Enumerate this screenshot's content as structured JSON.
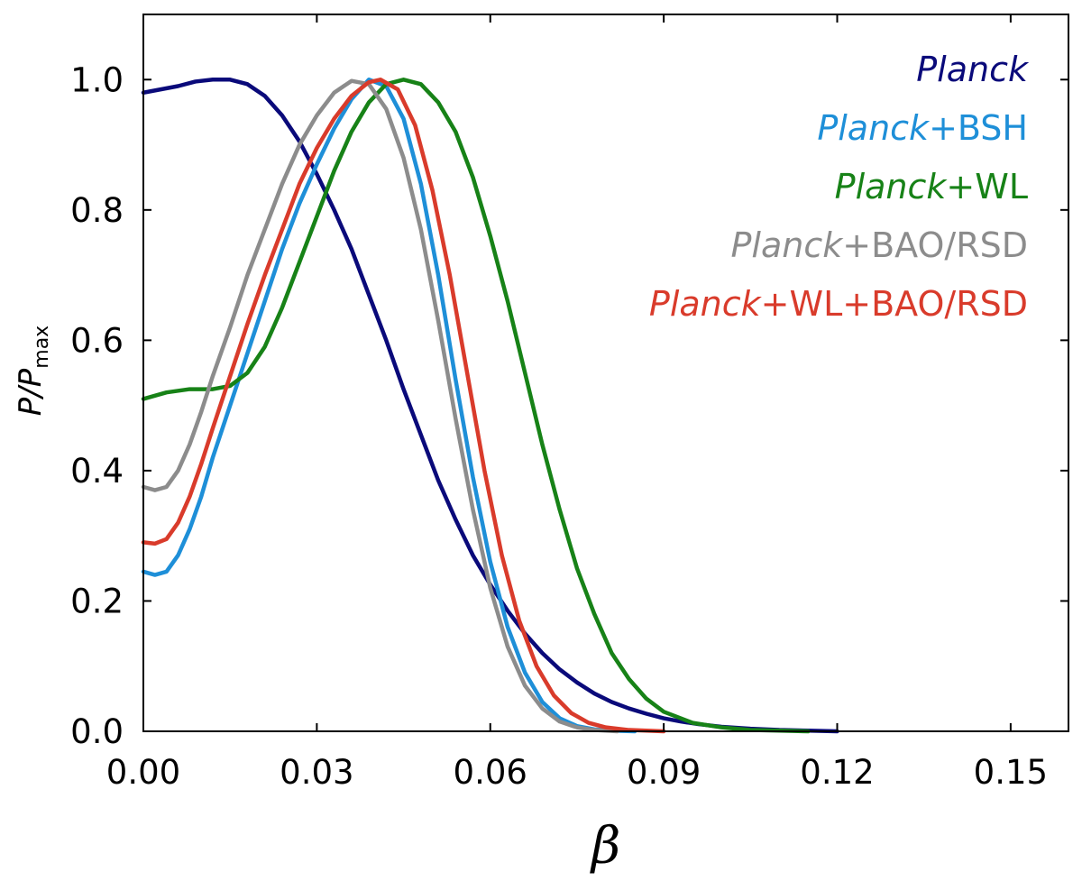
{
  "chart_data": {
    "type": "line",
    "title": "",
    "xlabel": "β",
    "ylabel": {
      "main": "P/P",
      "sub": "max"
    },
    "xlim": [
      0.0,
      0.16
    ],
    "ylim": [
      0.0,
      1.1
    ],
    "x_ticks": [
      0.0,
      0.03,
      0.06,
      0.09,
      0.12,
      0.15
    ],
    "x_tick_labels": [
      "0.00",
      "0.03",
      "0.06",
      "0.09",
      "0.12",
      "0.15"
    ],
    "y_ticks": [
      0.0,
      0.2,
      0.4,
      0.6,
      0.8,
      1.0
    ],
    "y_tick_labels": [
      "0.0",
      "0.2",
      "0.4",
      "0.6",
      "0.8",
      "1.0"
    ],
    "grid": false,
    "legend_position": "top-right",
    "series": [
      {
        "name": "Planck",
        "label_parts": [
          {
            "text": "Planck",
            "italic": true
          }
        ],
        "color": "#0a0a7a",
        "points": [
          [
            0.0,
            0.98
          ],
          [
            0.003,
            0.985
          ],
          [
            0.006,
            0.99
          ],
          [
            0.009,
            0.997
          ],
          [
            0.012,
            1.0
          ],
          [
            0.015,
            1.0
          ],
          [
            0.018,
            0.993
          ],
          [
            0.021,
            0.975
          ],
          [
            0.024,
            0.945
          ],
          [
            0.027,
            0.905
          ],
          [
            0.03,
            0.855
          ],
          [
            0.033,
            0.8
          ],
          [
            0.036,
            0.74
          ],
          [
            0.039,
            0.67
          ],
          [
            0.042,
            0.6
          ],
          [
            0.045,
            0.525
          ],
          [
            0.048,
            0.455
          ],
          [
            0.051,
            0.385
          ],
          [
            0.054,
            0.325
          ],
          [
            0.057,
            0.27
          ],
          [
            0.06,
            0.225
          ],
          [
            0.063,
            0.185
          ],
          [
            0.066,
            0.15
          ],
          [
            0.069,
            0.12
          ],
          [
            0.072,
            0.095
          ],
          [
            0.075,
            0.075
          ],
          [
            0.078,
            0.058
          ],
          [
            0.081,
            0.045
          ],
          [
            0.084,
            0.035
          ],
          [
            0.087,
            0.027
          ],
          [
            0.09,
            0.02
          ],
          [
            0.093,
            0.015
          ],
          [
            0.096,
            0.011
          ],
          [
            0.1,
            0.007
          ],
          [
            0.105,
            0.004
          ],
          [
            0.11,
            0.002
          ],
          [
            0.115,
            0.001
          ],
          [
            0.12,
            0.0
          ]
        ]
      },
      {
        "name": "Planck+BSH",
        "label_parts": [
          {
            "text": "Planck",
            "italic": true
          },
          {
            "text": "+BSH",
            "italic": false
          }
        ],
        "color": "#1e8fd8",
        "points": [
          [
            0.0,
            0.245
          ],
          [
            0.002,
            0.24
          ],
          [
            0.004,
            0.245
          ],
          [
            0.006,
            0.27
          ],
          [
            0.008,
            0.31
          ],
          [
            0.01,
            0.36
          ],
          [
            0.012,
            0.42
          ],
          [
            0.015,
            0.5
          ],
          [
            0.018,
            0.58
          ],
          [
            0.021,
            0.66
          ],
          [
            0.024,
            0.74
          ],
          [
            0.027,
            0.81
          ],
          [
            0.03,
            0.87
          ],
          [
            0.033,
            0.925
          ],
          [
            0.036,
            0.97
          ],
          [
            0.039,
            1.0
          ],
          [
            0.042,
            0.99
          ],
          [
            0.045,
            0.94
          ],
          [
            0.048,
            0.84
          ],
          [
            0.051,
            0.7
          ],
          [
            0.054,
            0.54
          ],
          [
            0.057,
            0.39
          ],
          [
            0.06,
            0.26
          ],
          [
            0.063,
            0.16
          ],
          [
            0.066,
            0.09
          ],
          [
            0.069,
            0.045
          ],
          [
            0.072,
            0.02
          ],
          [
            0.075,
            0.008
          ],
          [
            0.078,
            0.003
          ],
          [
            0.081,
            0.001
          ],
          [
            0.085,
            0.0
          ]
        ]
      },
      {
        "name": "Planck+WL",
        "label_parts": [
          {
            "text": "Planck",
            "italic": true
          },
          {
            "text": "+WL",
            "italic": false
          }
        ],
        "color": "#178217",
        "points": [
          [
            0.0,
            0.51
          ],
          [
            0.004,
            0.52
          ],
          [
            0.008,
            0.525
          ],
          [
            0.012,
            0.525
          ],
          [
            0.015,
            0.53
          ],
          [
            0.018,
            0.55
          ],
          [
            0.021,
            0.59
          ],
          [
            0.024,
            0.65
          ],
          [
            0.027,
            0.72
          ],
          [
            0.03,
            0.79
          ],
          [
            0.033,
            0.86
          ],
          [
            0.036,
            0.92
          ],
          [
            0.039,
            0.965
          ],
          [
            0.042,
            0.993
          ],
          [
            0.045,
            1.0
          ],
          [
            0.048,
            0.993
          ],
          [
            0.051,
            0.965
          ],
          [
            0.054,
            0.92
          ],
          [
            0.057,
            0.85
          ],
          [
            0.06,
            0.76
          ],
          [
            0.063,
            0.66
          ],
          [
            0.066,
            0.55
          ],
          [
            0.069,
            0.44
          ],
          [
            0.072,
            0.34
          ],
          [
            0.075,
            0.25
          ],
          [
            0.078,
            0.18
          ],
          [
            0.081,
            0.12
          ],
          [
            0.084,
            0.08
          ],
          [
            0.087,
            0.05
          ],
          [
            0.09,
            0.03
          ],
          [
            0.095,
            0.013
          ],
          [
            0.1,
            0.006
          ],
          [
            0.105,
            0.002
          ],
          [
            0.11,
            0.001
          ],
          [
            0.115,
            0.0
          ]
        ]
      },
      {
        "name": "Planck+BAO/RSD",
        "label_parts": [
          {
            "text": "Planck",
            "italic": true
          },
          {
            "text": "+BAO/RSD",
            "italic": false
          }
        ],
        "color": "#8c8c8c",
        "points": [
          [
            0.0,
            0.375
          ],
          [
            0.002,
            0.37
          ],
          [
            0.004,
            0.375
          ],
          [
            0.006,
            0.4
          ],
          [
            0.008,
            0.44
          ],
          [
            0.01,
            0.49
          ],
          [
            0.012,
            0.545
          ],
          [
            0.015,
            0.62
          ],
          [
            0.018,
            0.7
          ],
          [
            0.021,
            0.77
          ],
          [
            0.024,
            0.84
          ],
          [
            0.027,
            0.9
          ],
          [
            0.03,
            0.945
          ],
          [
            0.033,
            0.98
          ],
          [
            0.036,
            0.998
          ],
          [
            0.039,
            0.993
          ],
          [
            0.042,
            0.955
          ],
          [
            0.045,
            0.88
          ],
          [
            0.048,
            0.77
          ],
          [
            0.051,
            0.63
          ],
          [
            0.054,
            0.48
          ],
          [
            0.057,
            0.34
          ],
          [
            0.06,
            0.22
          ],
          [
            0.063,
            0.13
          ],
          [
            0.066,
            0.07
          ],
          [
            0.069,
            0.035
          ],
          [
            0.072,
            0.015
          ],
          [
            0.075,
            0.006
          ],
          [
            0.078,
            0.002
          ],
          [
            0.082,
            0.0
          ]
        ]
      },
      {
        "name": "Planck+WL+BAO/RSD",
        "label_parts": [
          {
            "text": "Planck",
            "italic": true
          },
          {
            "text": "+WL+BAO/RSD",
            "italic": false
          }
        ],
        "color": "#d93b2b",
        "points": [
          [
            0.0,
            0.29
          ],
          [
            0.002,
            0.288
          ],
          [
            0.004,
            0.295
          ],
          [
            0.006,
            0.32
          ],
          [
            0.008,
            0.36
          ],
          [
            0.01,
            0.41
          ],
          [
            0.012,
            0.465
          ],
          [
            0.015,
            0.545
          ],
          [
            0.018,
            0.625
          ],
          [
            0.021,
            0.7
          ],
          [
            0.024,
            0.77
          ],
          [
            0.027,
            0.84
          ],
          [
            0.03,
            0.895
          ],
          [
            0.033,
            0.94
          ],
          [
            0.036,
            0.975
          ],
          [
            0.039,
            0.996
          ],
          [
            0.041,
            1.0
          ],
          [
            0.044,
            0.985
          ],
          [
            0.047,
            0.93
          ],
          [
            0.05,
            0.83
          ],
          [
            0.053,
            0.7
          ],
          [
            0.056,
            0.55
          ],
          [
            0.059,
            0.4
          ],
          [
            0.062,
            0.27
          ],
          [
            0.065,
            0.17
          ],
          [
            0.068,
            0.1
          ],
          [
            0.071,
            0.055
          ],
          [
            0.074,
            0.028
          ],
          [
            0.077,
            0.013
          ],
          [
            0.08,
            0.006
          ],
          [
            0.084,
            0.002
          ],
          [
            0.09,
            0.0
          ]
        ]
      }
    ]
  }
}
